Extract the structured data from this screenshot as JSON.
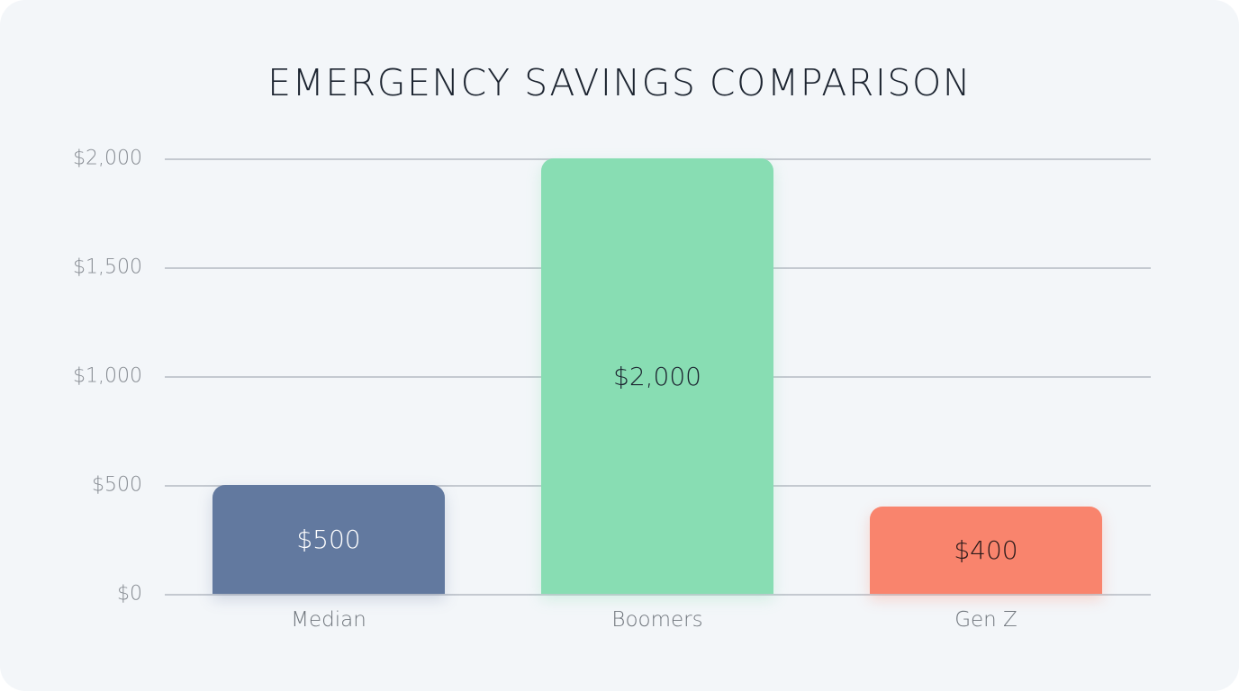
{
  "chart_data": {
    "type": "bar",
    "title": "EMERGENCY SAVINGS COMPARISON",
    "categories": [
      "Median",
      "Boomers",
      "Gen Z"
    ],
    "values": [
      500,
      2000,
      400
    ],
    "value_labels": [
      "$500",
      "$2,000",
      "$400"
    ],
    "colors": [
      "#62799f",
      "#88ddb3",
      "#f9846d"
    ],
    "label_colors": [
      "#ffffff",
      "#1c2430",
      "#2a1a1a"
    ],
    "xlabel": "",
    "ylabel": "",
    "ylim": [
      0,
      2000
    ],
    "yticks": [
      0,
      500,
      1000,
      1500,
      2000
    ],
    "ytick_labels": [
      "$0",
      "$500",
      "$1,000",
      "$1,500",
      "$2,000"
    ],
    "grid": true,
    "legend": null
  }
}
